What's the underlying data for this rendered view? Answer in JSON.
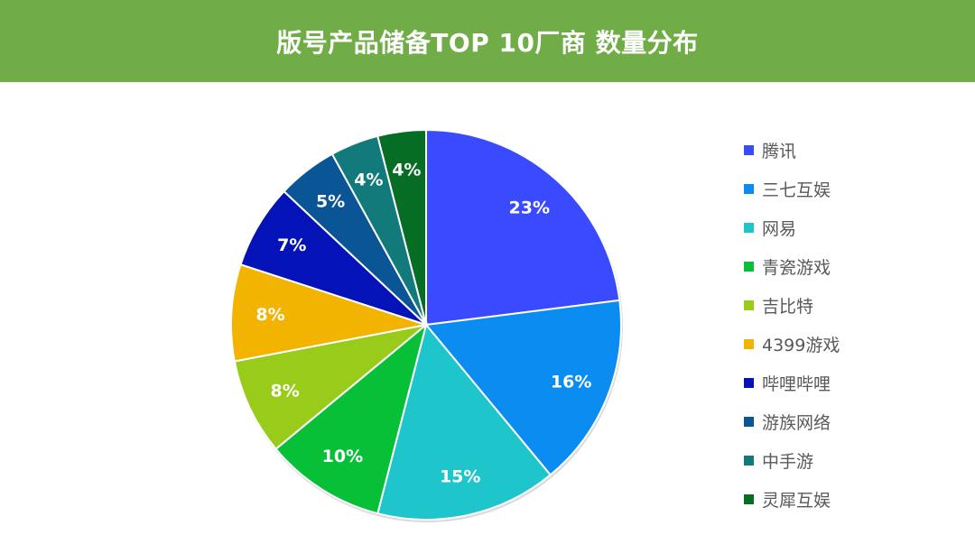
{
  "header": {
    "title": "版号产品储备TOP 10厂商 数量分布",
    "background": "#70ad47"
  },
  "chart_data": {
    "type": "pie",
    "title": "版号产品储备TOP 10厂商 数量分布",
    "legend_position": "right",
    "start_angle": "12 o'clock",
    "direction": "clockwise",
    "categories": [
      "腾讯",
      "三七互娱",
      "网易",
      "青瓷游戏",
      "吉比特",
      "4399游戏",
      "哔哩哔哩",
      "游族网络",
      "中手游",
      "灵犀互娱"
    ],
    "values": [
      23,
      16,
      15,
      10,
      8,
      8,
      7,
      5,
      4,
      4
    ],
    "labels": [
      "23%",
      "16%",
      "15%",
      "10%",
      "8%",
      "8%",
      "7%",
      "5%",
      "4%",
      "4%"
    ],
    "colors": [
      "#3a4bff",
      "#0a8cf0",
      "#1ec6cc",
      "#07c038",
      "#99cc1a",
      "#f2b400",
      "#0313b8",
      "#0a5596",
      "#127a7a",
      "#066e24"
    ]
  }
}
